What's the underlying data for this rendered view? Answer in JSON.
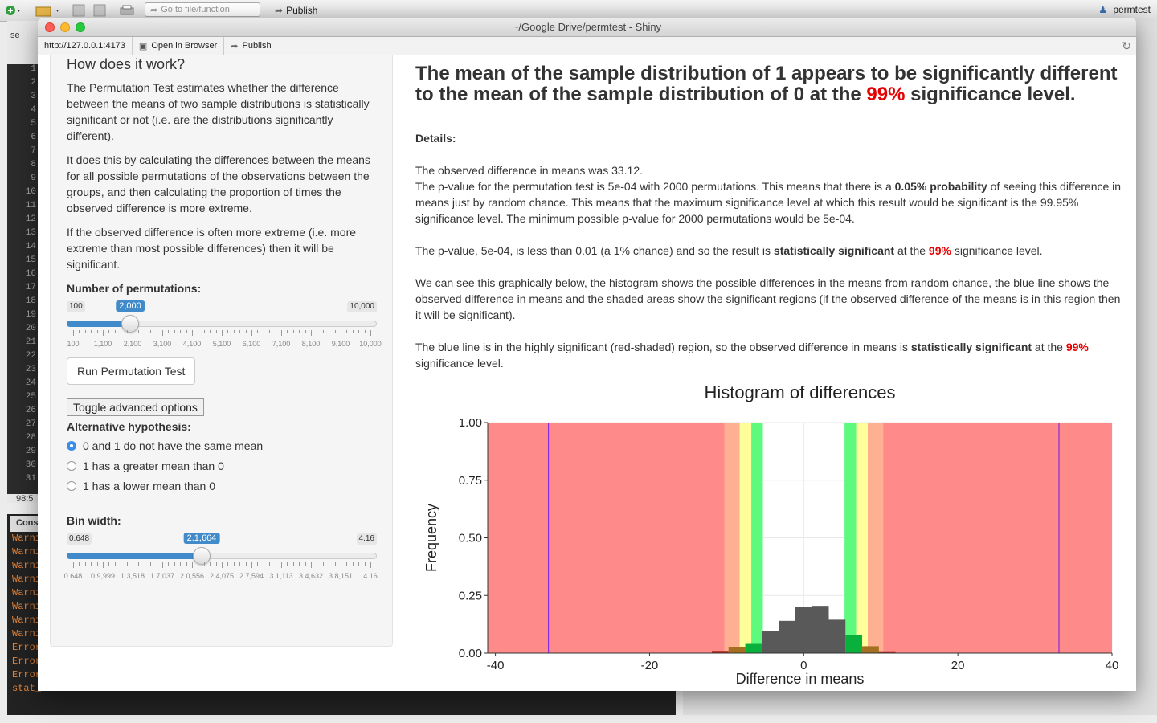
{
  "rstudio": {
    "goto_placeholder": "Go to file/function",
    "publish": "Publish",
    "user": "permtest",
    "tab_fragment": "se",
    "line_numbers": [
      "1",
      "2",
      "3",
      "4",
      "5",
      "6",
      "7",
      "8",
      "9",
      "10",
      "11",
      "12",
      "13",
      "14",
      "15",
      "16",
      "17",
      "18",
      "19",
      "20",
      "21",
      "22",
      "23",
      "24",
      "25",
      "26",
      "27",
      "28",
      "29",
      "30",
      "31"
    ],
    "position": "98:5",
    "console_tab": "Cons",
    "console_lines": [
      "Warni",
      "Warni",
      "Warni",
      "Warni",
      "Warni",
      "Warni",
      "Warni",
      "Warni",
      "Error",
      "Error",
      "Error",
      "stat_"
    ]
  },
  "window": {
    "title": "~/Google Drive/permtest - Shiny",
    "url": "http://127.0.0.1:4173",
    "open_in_browser": "Open in Browser",
    "publish": "Publish"
  },
  "sidebar": {
    "heading": "How does it work?",
    "p1": "The Permutation Test estimates whether the difference between the means of two sample distributions is statistically significant or not (i.e. are the distributions significantly different).",
    "p2": "It does this by calculating the differences between the means for all possible permutations of the observations between the groups, and then calculating the proportion of times the observed difference is more extreme.",
    "p3": "If the observed difference is often more extreme (i.e. more extreme than most possible differences) then it will be significant.",
    "perm_label": "Number of permutations:",
    "perm_slider": {
      "min_label": "100",
      "max_label": "10,000",
      "value_label": "2,000",
      "min": 100,
      "max": 10000,
      "value": 2000,
      "ticks": [
        "100",
        "1,100",
        "2,100",
        "3,100",
        "4,100",
        "5,100",
        "6,100",
        "7,100",
        "8,100",
        "9,100",
        "10,000"
      ]
    },
    "run_button": "Run Permutation Test",
    "toggle_button": "Toggle advanced options",
    "alt_label": "Alternative hypothesis:",
    "radios": [
      {
        "label": "0 and 1 do not have the same mean",
        "checked": true
      },
      {
        "label": "1 has a greater mean than 0",
        "checked": false
      },
      {
        "label": "1 has a lower mean than 0",
        "checked": false
      }
    ],
    "bin_label": "Bin width:",
    "bin_slider": {
      "min_label": "0.648",
      "max_label": "4.16",
      "value_label": "2.1,664",
      "min": 0.648,
      "max": 4.16,
      "value": 2.1664,
      "ticks": [
        "0.648",
        "0.9,999",
        "1.3,518",
        "1.7,037",
        "2.0,556",
        "2.4,075",
        "2.7,594",
        "3.1,113",
        "3.4,632",
        "3.8,151",
        "4.16"
      ]
    }
  },
  "main": {
    "headline_a": "The mean of the sample distribution of ",
    "headline_b": "1",
    "headline_c": " appears to be ",
    "headline_d": "significantly different",
    "headline_e": " to the mean of the sample distribution of ",
    "headline_f": "0",
    "headline_g": " at the ",
    "headline_pct": "99%",
    "headline_h": " significance level.",
    "details_label": "Details:",
    "obs_line": "The observed difference in means was 33.12.",
    "pval_a": "The p-value for the permutation test is 5e-04 with 2000 permutations. This means that there is a ",
    "pval_b": "0.05% probability",
    "pval_c": " of seeing this difference in means just by random chance. This means that the maximum significance level at which this result would be significant is the 99.95% significance level. The minimum possible p-value for 2000 permutations would be 5e-04.",
    "sig_a": "The p-value, 5e-04, is less than 0.01 (a 1% chance) and so the result is ",
    "sig_b": "statistically significant",
    "sig_c": " at the ",
    "sig_pct": "99%",
    "sig_d": " significance level.",
    "graph_text": "We can see this graphically below, the histogram shows the possible differences in the means from random chance, the blue line shows the observed difference in means and the shaded areas show the significant regions (if the observed difference of the means is in this region then it will be significant).",
    "blue_a": "The blue line is in the highly significant (red-shaded) region, so the observed difference in means is ",
    "blue_b": "statistically significant",
    "blue_c": " at the ",
    "blue_pct": "99%",
    "blue_d": " significance level."
  },
  "chart_data": {
    "type": "bar",
    "title": "Histogram of differences",
    "xlabel": "Difference in means",
    "ylabel": "Frequency",
    "xlim": [
      -41,
      40
    ],
    "ylim": [
      0,
      1
    ],
    "xticks": [
      "-40",
      "-20",
      "0",
      "20",
      "40"
    ],
    "yticks": [
      "0.00",
      "0.25",
      "0.50",
      "0.75",
      "1.00"
    ],
    "bin_width": 2.1664,
    "bin_centers": [
      -10.83,
      -8.67,
      -6.5,
      -4.33,
      -2.17,
      0,
      2.17,
      4.33,
      6.5,
      8.67,
      10.83
    ],
    "values": [
      0.01,
      0.025,
      0.04,
      0.095,
      0.14,
      0.2,
      0.205,
      0.145,
      0.08,
      0.03,
      0.008
    ],
    "observed_lines": [
      -33.12,
      33.12
    ],
    "regions": [
      {
        "name": "highly significant",
        "color": "#ff8a8a",
        "from": -41,
        "to": -10.3
      },
      {
        "name": "highly significant",
        "color": "#ff8a8a",
        "from": 10.3,
        "to": 40
      },
      {
        "name": "significant",
        "color": "#ffb092",
        "from": -10.3,
        "to": -8.3
      },
      {
        "name": "significant",
        "color": "#ffb092",
        "from": 8.3,
        "to": 10.3
      },
      {
        "name": "weakly significant",
        "color": "#ffff99",
        "from": -8.3,
        "to": -6.8
      },
      {
        "name": "weakly significant",
        "color": "#ffff99",
        "from": 6.8,
        "to": 8.3
      },
      {
        "name": "marginal",
        "color": "#5dfa7e",
        "from": -6.8,
        "to": -5.3
      },
      {
        "name": "marginal",
        "color": "#5dfa7e",
        "from": 5.3,
        "to": 6.8
      }
    ],
    "colors": {
      "bars": "#595959",
      "line": "#8a2be2"
    }
  }
}
